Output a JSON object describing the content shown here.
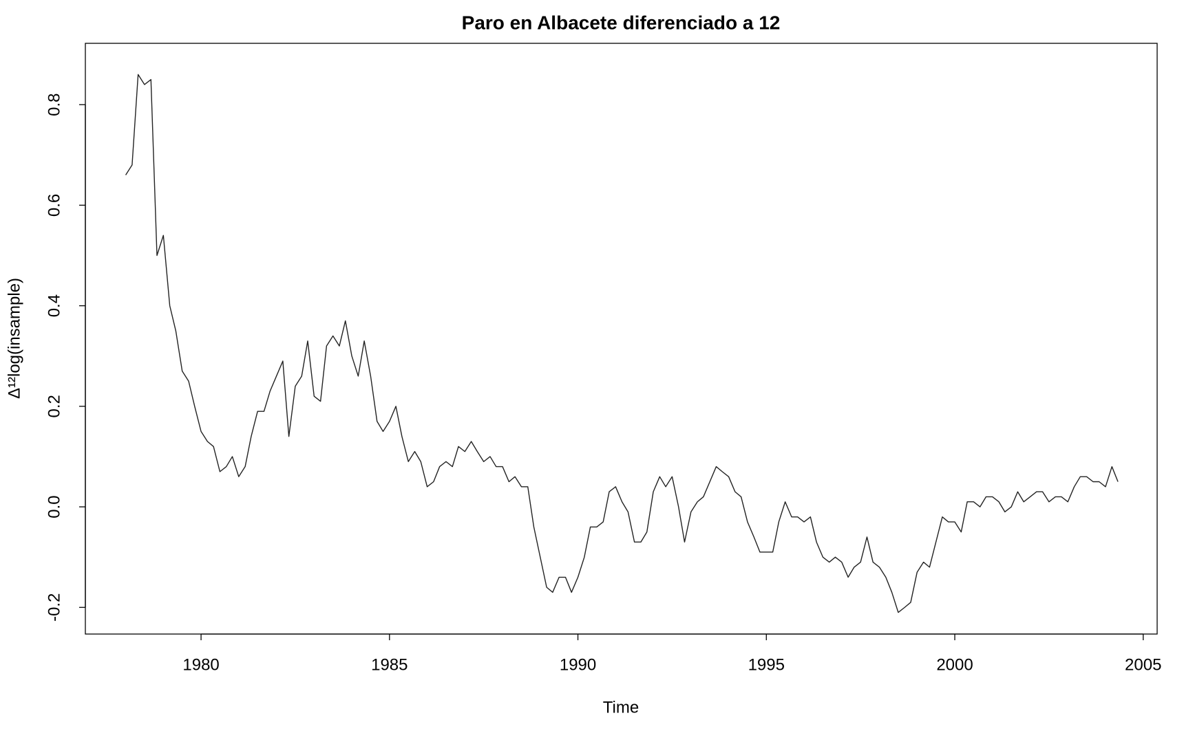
{
  "chart_data": {
    "type": "line",
    "title": "Paro en Albacete diferenciado a 12",
    "xlabel": "Time",
    "ylabel": "Δ¹²log(insample)",
    "xlim": [
      1976.93,
      2005.37
    ],
    "ylim": [
      -0.253,
      0.922
    ],
    "xticks": [
      1980,
      1985,
      1990,
      1995,
      2000,
      2005
    ],
    "yticks": [
      -0.2,
      {
        "value": 0,
        "label": "0.0"
      },
      0.2,
      0.4,
      0.6,
      0.8
    ],
    "series": [
      {
        "color": "#222222",
        "x": [
          1978.0,
          1978.17,
          1978.33,
          1978.5,
          1978.67,
          1978.83,
          1979.0,
          1979.17,
          1979.33,
          1979.5,
          1979.67,
          1979.83,
          1980.0,
          1980.17,
          1980.33,
          1980.5,
          1980.67,
          1980.83,
          1981.0,
          1981.17,
          1981.33,
          1981.5,
          1981.67,
          1981.83,
          1982.0,
          1982.17,
          1982.33,
          1982.5,
          1982.67,
          1982.83,
          1983.0,
          1983.17,
          1983.33,
          1983.5,
          1983.67,
          1983.83,
          1984.0,
          1984.17,
          1984.33,
          1984.5,
          1984.67,
          1984.83,
          1985.0,
          1985.17,
          1985.33,
          1985.5,
          1985.67,
          1985.83,
          1986.0,
          1986.17,
          1986.33,
          1986.5,
          1986.67,
          1986.83,
          1987.0,
          1987.17,
          1987.33,
          1987.5,
          1987.67,
          1987.83,
          1988.0,
          1988.17,
          1988.33,
          1988.5,
          1988.67,
          1988.83,
          1989.0,
          1989.17,
          1989.33,
          1989.5,
          1989.67,
          1989.83,
          1990.0,
          1990.17,
          1990.33,
          1990.5,
          1990.67,
          1990.83,
          1991.0,
          1991.17,
          1991.33,
          1991.5,
          1991.67,
          1991.83,
          1992.0,
          1992.17,
          1992.33,
          1992.5,
          1992.67,
          1992.83,
          1993.0,
          1993.17,
          1993.33,
          1993.5,
          1993.67,
          1993.83,
          1994.0,
          1994.17,
          1994.33,
          1994.5,
          1994.67,
          1994.83,
          1995.0,
          1995.17,
          1995.33,
          1995.5,
          1995.67,
          1995.83,
          1996.0,
          1996.17,
          1996.33,
          1996.5,
          1996.67,
          1996.83,
          1997.0,
          1997.17,
          1997.33,
          1997.5,
          1997.67,
          1997.83,
          1998.0,
          1998.17,
          1998.33,
          1998.5,
          1998.67,
          1998.83,
          1999.0,
          1999.17,
          1999.33,
          1999.5,
          1999.67,
          1999.83,
          2000.0,
          2000.17,
          2000.33,
          2000.5,
          2000.67,
          2000.83,
          2001.0,
          2001.17,
          2001.33,
          2001.5,
          2001.67,
          2001.83,
          2002.0,
          2002.17,
          2002.33,
          2002.5,
          2002.67,
          2002.83,
          2003.0,
          2003.17,
          2003.33,
          2003.5,
          2003.67,
          2003.83,
          2004.0,
          2004.17,
          2004.33
        ],
        "values": [
          0.66,
          0.68,
          0.86,
          0.84,
          0.85,
          0.5,
          0.54,
          0.4,
          0.35,
          0.27,
          0.25,
          0.2,
          0.15,
          0.13,
          0.12,
          0.07,
          0.08,
          0.1,
          0.06,
          0.08,
          0.14,
          0.19,
          0.19,
          0.23,
          0.26,
          0.29,
          0.14,
          0.24,
          0.26,
          0.33,
          0.22,
          0.21,
          0.32,
          0.34,
          0.32,
          0.37,
          0.3,
          0.26,
          0.33,
          0.26,
          0.17,
          0.15,
          0.17,
          0.2,
          0.14,
          0.09,
          0.11,
          0.09,
          0.04,
          0.05,
          0.08,
          0.09,
          0.08,
          0.12,
          0.11,
          0.13,
          0.11,
          0.09,
          0.1,
          0.08,
          0.08,
          0.05,
          0.06,
          0.04,
          0.04,
          -0.04,
          -0.1,
          -0.16,
          -0.17,
          -0.14,
          -0.14,
          -0.17,
          -0.14,
          -0.1,
          -0.04,
          -0.04,
          -0.03,
          0.03,
          0.04,
          0.01,
          -0.01,
          -0.07,
          -0.07,
          -0.05,
          0.03,
          0.06,
          0.04,
          0.06,
          0.0,
          -0.07,
          -0.01,
          0.01,
          0.02,
          0.05,
          0.08,
          0.07,
          0.06,
          0.03,
          0.02,
          -0.03,
          -0.06,
          -0.09,
          -0.09,
          -0.09,
          -0.03,
          0.01,
          -0.02,
          -0.02,
          -0.03,
          -0.02,
          -0.07,
          -0.1,
          -0.11,
          -0.1,
          -0.11,
          -0.14,
          -0.12,
          -0.11,
          -0.06,
          -0.11,
          -0.12,
          -0.14,
          -0.17,
          -0.21,
          -0.2,
          -0.19,
          -0.13,
          -0.11,
          -0.12,
          -0.07,
          -0.02,
          -0.03,
          -0.03,
          -0.05,
          0.01,
          0.01,
          0.0,
          0.02,
          0.02,
          0.01,
          -0.01,
          0.0,
          0.03,
          0.01,
          0.02,
          0.03,
          0.03,
          0.01,
          0.02,
          0.02,
          0.01,
          0.04,
          0.06,
          0.06,
          0.05,
          0.05,
          0.04,
          0.08,
          0.05
        ]
      }
    ]
  }
}
